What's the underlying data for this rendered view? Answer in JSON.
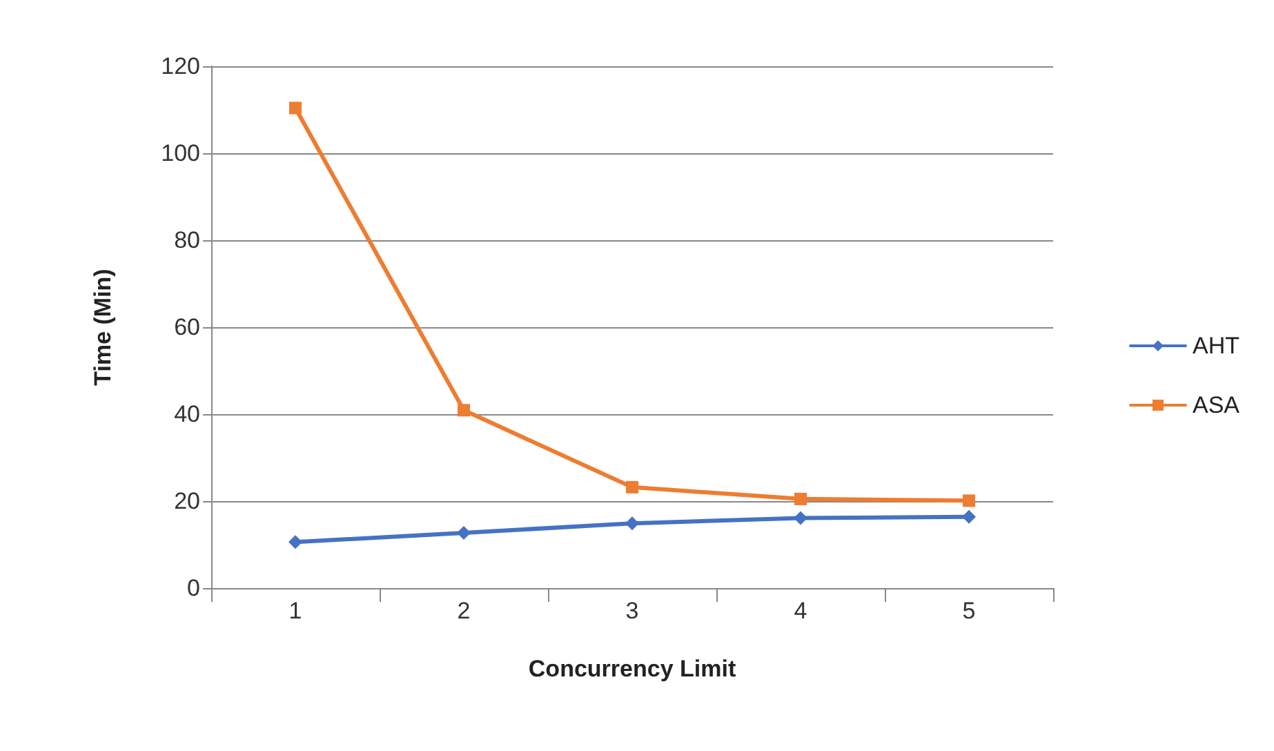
{
  "chart_data": {
    "type": "line",
    "xlabel": "Concurrency Limit",
    "ylabel": "Time (Min)",
    "categories": [
      "1",
      "2",
      "3",
      "4",
      "5"
    ],
    "series": [
      {
        "name": "AHT",
        "color": "#4472c4",
        "marker": "diamond",
        "values": [
          10.6,
          12.7,
          14.9,
          16.1,
          16.4
        ]
      },
      {
        "name": "ASA",
        "color": "#ed7d31",
        "marker": "square",
        "values": [
          110.4,
          40.9,
          23.2,
          20.5,
          20.1
        ]
      }
    ],
    "ylim": [
      0,
      120
    ],
    "yticks": [
      0,
      20,
      40,
      60,
      80,
      100,
      120
    ],
    "grid": "y",
    "legend": "right",
    "line_style": "solid"
  }
}
